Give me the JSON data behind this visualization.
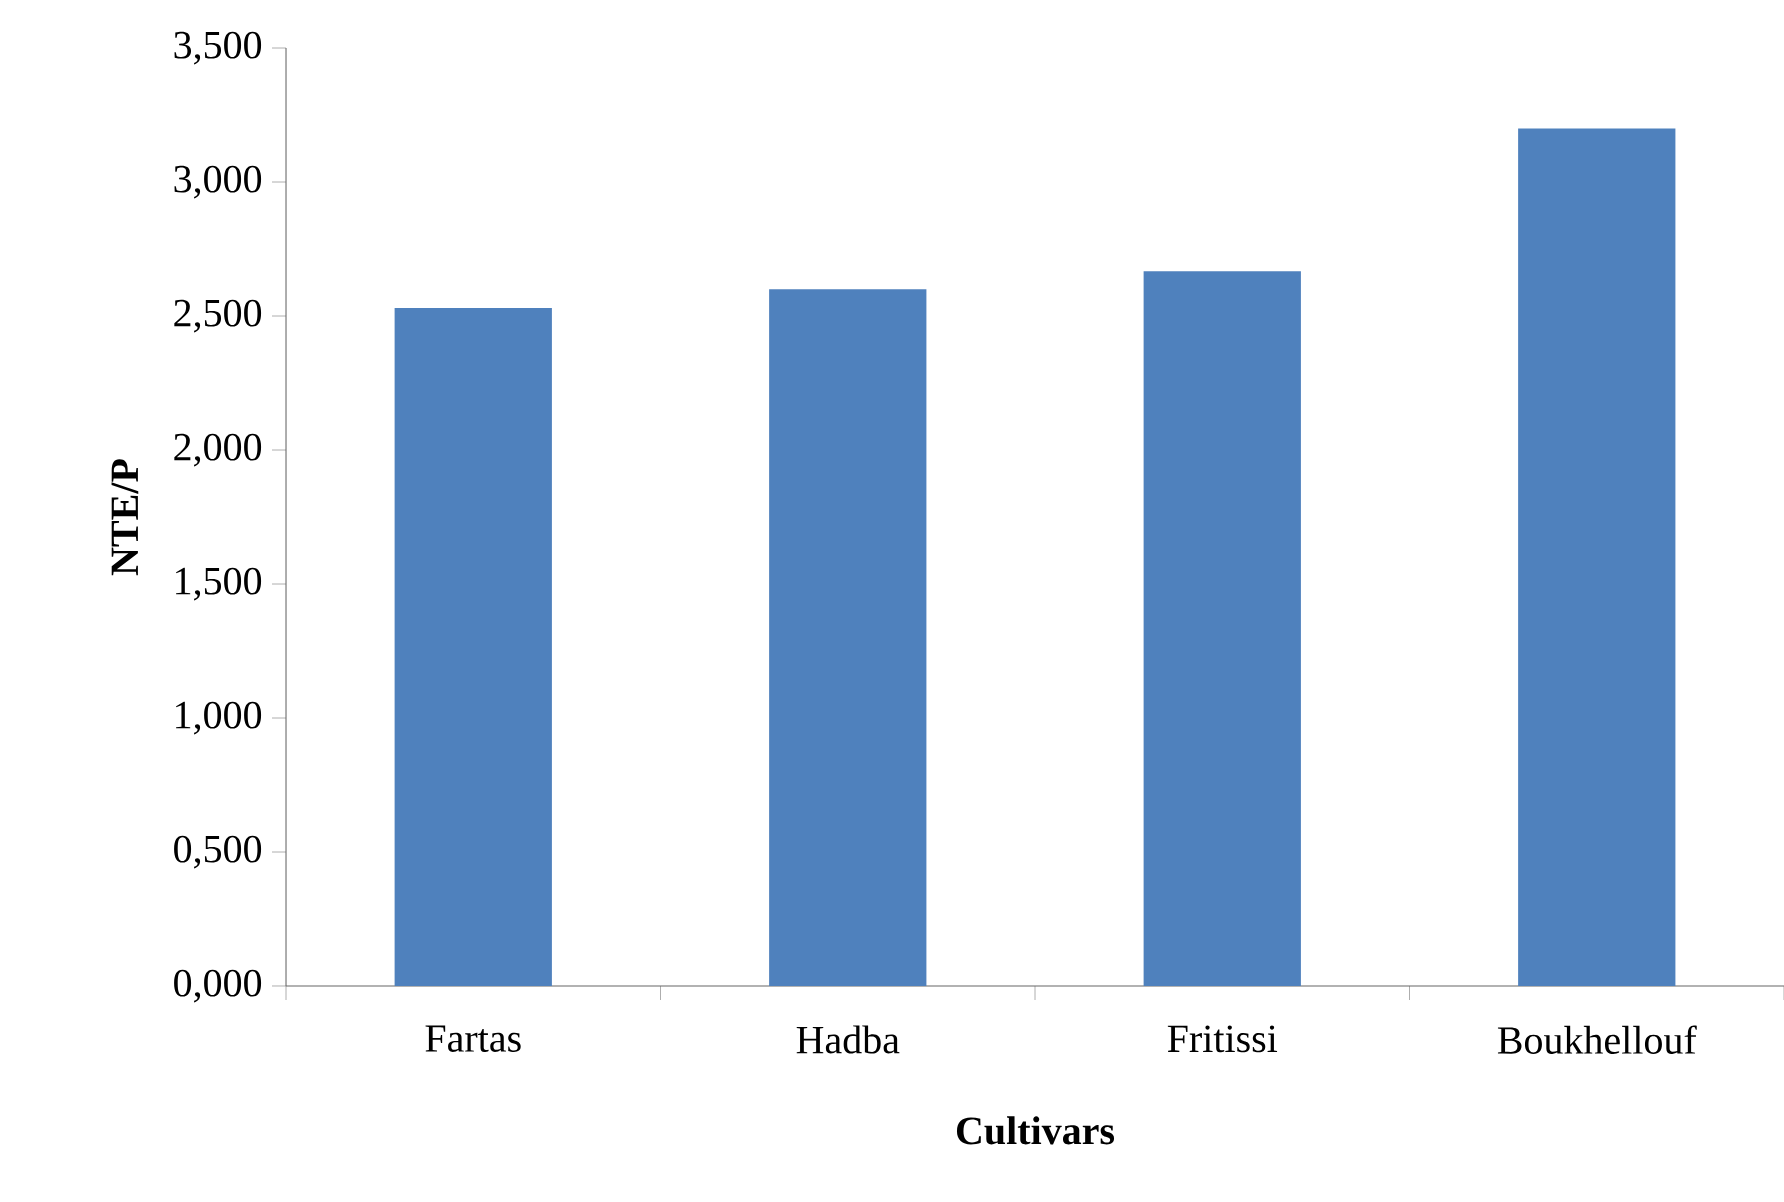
{
  "chart_data": {
    "type": "bar",
    "xlabel": "Cultivars",
    "ylabel": "NTE/P",
    "categories": [
      "Fartas",
      "Hadba",
      "Fritissi",
      "Boukhellouf"
    ],
    "values": [
      2.53,
      2.6,
      2.667,
      3.2
    ],
    "color": "#4f81bd",
    "ylim": [
      0,
      3.5
    ],
    "yticks": [
      {
        "value": 0,
        "label": "0,000"
      },
      {
        "value": 0.5,
        "label": "0,500"
      },
      {
        "value": 1,
        "label": "1,000"
      },
      {
        "value": 1.5,
        "label": "1,500"
      },
      {
        "value": 2,
        "label": "2,000"
      },
      {
        "value": 2.5,
        "label": "2,500"
      },
      {
        "value": 3,
        "label": "3,000"
      },
      {
        "value": 3.5,
        "label": "3,500"
      }
    ],
    "grid": false
  }
}
